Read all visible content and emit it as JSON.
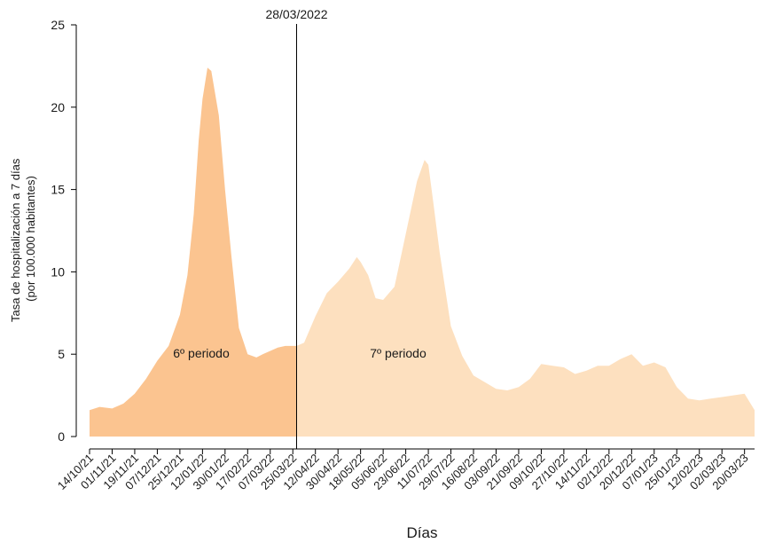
{
  "chart_data": {
    "type": "area",
    "title": "",
    "xlabel": "Días",
    "ylabel_lines": [
      "Tasa de hospitalización a 7 días",
      "(por 100.000 habitantes)"
    ],
    "ylim": [
      0,
      25
    ],
    "yticks": [
      0,
      5,
      10,
      15,
      20,
      25
    ],
    "x_range": [
      "2021-10-14",
      "2023-03-28"
    ],
    "xtick_labels": [
      "14/10/21",
      "01/11/21",
      "19/11/21",
      "07/12/21",
      "25/12/21",
      "12/01/22",
      "30/01/22",
      "17/02/22",
      "07/03/22",
      "25/03/22",
      "12/04/22",
      "30/04/22",
      "18/05/22",
      "05/06/22",
      "23/06/22",
      "11/07/22",
      "29/07/22",
      "16/08/22",
      "03/09/22",
      "21/09/22",
      "09/10/22",
      "27/10/22",
      "14/11/22",
      "02/12/22",
      "20/12/22",
      "07/01/23",
      "25/01/23",
      "12/02/23",
      "02/03/23",
      "20/03/23"
    ],
    "xtick_dates": [
      "2021-10-14",
      "2021-11-01",
      "2021-11-19",
      "2021-12-07",
      "2021-12-25",
      "2022-01-12",
      "2022-01-30",
      "2022-02-17",
      "2022-03-07",
      "2022-03-25",
      "2022-04-12",
      "2022-04-30",
      "2022-05-18",
      "2022-06-05",
      "2022-06-23",
      "2022-07-11",
      "2022-07-29",
      "2022-08-16",
      "2022-09-03",
      "2022-09-21",
      "2022-10-09",
      "2022-10-27",
      "2022-11-14",
      "2022-12-02",
      "2022-12-20",
      "2023-01-07",
      "2023-01-25",
      "2023-02-12",
      "2023-03-02",
      "2023-03-20"
    ],
    "divider": {
      "date": "2022-03-28",
      "label": "28/03/2022"
    },
    "series": [
      {
        "label": "6º periodo",
        "color": "#fbc490"
      },
      {
        "label": "7º periodo",
        "color": "#fde0bf"
      }
    ],
    "x": [
      "2021-10-14",
      "2021-10-22",
      "2021-11-01",
      "2021-11-10",
      "2021-11-19",
      "2021-11-28",
      "2021-12-07",
      "2021-12-16",
      "2021-12-25",
      "2021-12-31",
      "2022-01-05",
      "2022-01-09",
      "2022-01-12",
      "2022-01-16",
      "2022-01-19",
      "2022-01-25",
      "2022-01-30",
      "2022-02-04",
      "2022-02-10",
      "2022-02-17",
      "2022-02-24",
      "2022-03-01",
      "2022-03-07",
      "2022-03-13",
      "2022-03-19",
      "2022-03-25",
      "2022-03-28",
      "2022-04-03",
      "2022-04-12",
      "2022-04-21",
      "2022-04-30",
      "2022-05-09",
      "2022-05-15",
      "2022-05-18",
      "2022-05-24",
      "2022-05-30",
      "2022-06-05",
      "2022-06-14",
      "2022-06-23",
      "2022-07-02",
      "2022-07-08",
      "2022-07-11",
      "2022-07-15",
      "2022-07-20",
      "2022-07-29",
      "2022-08-07",
      "2022-08-16",
      "2022-08-25",
      "2022-09-03",
      "2022-09-12",
      "2022-09-21",
      "2022-09-30",
      "2022-10-09",
      "2022-10-18",
      "2022-10-27",
      "2022-11-05",
      "2022-11-14",
      "2022-11-23",
      "2022-12-02",
      "2022-12-11",
      "2022-12-20",
      "2022-12-29",
      "2023-01-07",
      "2023-01-16",
      "2023-01-25",
      "2023-02-03",
      "2023-02-12",
      "2023-02-21",
      "2023-03-02",
      "2023-03-11",
      "2023-03-20",
      "2023-03-28"
    ],
    "y": [
      1.6,
      1.8,
      1.7,
      2.0,
      2.6,
      3.5,
      4.6,
      5.5,
      7.4,
      9.8,
      13.5,
      18.0,
      20.5,
      22.4,
      22.2,
      19.5,
      15.0,
      11.0,
      6.6,
      5.0,
      4.8,
      5.0,
      5.2,
      5.4,
      5.5,
      5.5,
      5.5,
      5.7,
      7.3,
      8.7,
      9.4,
      10.2,
      10.9,
      10.6,
      9.8,
      8.4,
      8.3,
      9.1,
      12.3,
      15.5,
      16.8,
      16.5,
      14.2,
      11.2,
      6.7,
      4.9,
      3.7,
      3.3,
      2.9,
      2.8,
      3.0,
      3.5,
      4.4,
      4.3,
      4.2,
      3.8,
      4.0,
      4.3,
      4.3,
      4.7,
      5.0,
      4.3,
      4.5,
      4.2,
      3.0,
      2.3,
      2.2,
      2.3,
      2.4,
      2.5,
      2.6,
      1.6
    ]
  }
}
